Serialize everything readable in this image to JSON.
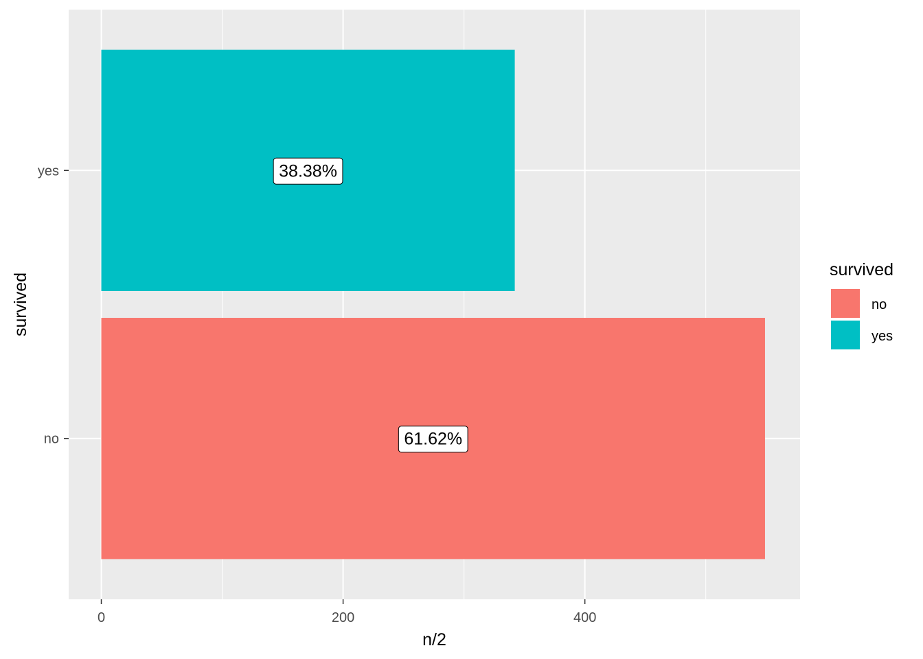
{
  "chart_data": {
    "type": "bar",
    "orientation": "horizontal",
    "categories": [
      "no",
      "yes"
    ],
    "values": [
      549,
      342
    ],
    "labels": [
      "61.62%",
      "38.38%"
    ],
    "xlabel": "n/2",
    "ylabel": "survived",
    "xlim": [
      -27,
      578
    ],
    "xticks": [
      0,
      200,
      400
    ],
    "grid": true,
    "legend": {
      "title": "survived",
      "placement": "right",
      "entries": [
        "no",
        "yes"
      ]
    },
    "colors": {
      "no": "#F8766D",
      "yes": "#00BFC4",
      "panel": "#EBEBEB",
      "grid": "#FFFFFF"
    }
  }
}
